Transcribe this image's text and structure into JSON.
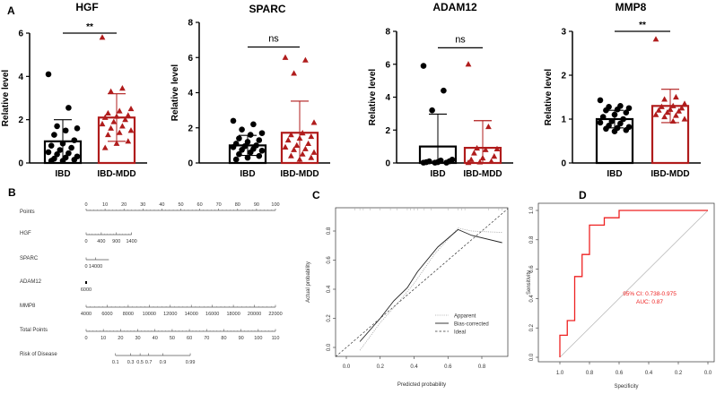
{
  "panel_labels": {
    "a": "A",
    "b": "B",
    "c": "C",
    "d": "D"
  },
  "chart_data": [
    {
      "type": "bar",
      "title": "HGF",
      "ylabel": "Relative level",
      "ylim": [
        0,
        6
      ],
      "yticks": [
        0,
        2,
        4,
        6
      ],
      "categories": [
        "IBD",
        "IBD-MDD"
      ],
      "significance": "**",
      "sig_level": 6.0,
      "groups": [
        {
          "name": "IBD",
          "mean": 1.0,
          "sd": 1.0,
          "points": [
            4.1,
            2.55,
            1.7,
            1.6,
            1.5,
            1.3,
            1.05,
            0.9,
            0.8,
            0.7,
            0.6,
            0.5,
            0.45,
            0.4,
            0.3,
            0.25,
            0.2,
            0.15,
            0.1,
            0.1
          ]
        },
        {
          "name": "IBD-MDD",
          "mean": 2.1,
          "sd": 1.1,
          "points": [
            5.8,
            3.45,
            3.3,
            2.5,
            2.4,
            2.3,
            2.2,
            2.15,
            2.1,
            2.0,
            1.9,
            1.8,
            1.7,
            1.6,
            1.5,
            1.4,
            1.3,
            1.0,
            0.9,
            0.7
          ]
        }
      ]
    },
    {
      "type": "bar",
      "title": "SPARC",
      "ylabel": "Relative level",
      "ylim": [
        0,
        8
      ],
      "yticks": [
        0,
        2,
        4,
        6,
        8
      ],
      "categories": [
        "IBD",
        "IBD-MDD"
      ],
      "significance": "ns",
      "sig_level": 6.6,
      "groups": [
        {
          "name": "IBD",
          "mean": 1.0,
          "sd": 0.57,
          "points": [
            2.4,
            2.2,
            1.9,
            1.7,
            1.6,
            1.4,
            1.3,
            1.2,
            1.1,
            1.0,
            0.95,
            0.9,
            0.8,
            0.75,
            0.7,
            0.6,
            0.5,
            0.4,
            0.3,
            0.2
          ]
        },
        {
          "name": "IBD-MDD",
          "mean": 1.72,
          "sd": 1.8,
          "points": [
            6.0,
            5.85,
            5.1,
            2.3,
            1.7,
            1.6,
            1.5,
            1.4,
            1.3,
            1.1,
            1.0,
            0.9,
            0.8,
            0.75,
            0.6,
            0.5,
            0.4,
            0.3,
            0.2
          ]
        }
      ]
    },
    {
      "type": "bar",
      "title": "ADAM12",
      "ylabel": "Relative level",
      "ylim": [
        0,
        8
      ],
      "yticks": [
        0,
        2,
        4,
        6,
        8
      ],
      "categories": [
        "IBD",
        "IBD-MDD"
      ],
      "significance": "ns",
      "sig_level": 7.0,
      "groups": [
        {
          "name": "IBD",
          "mean": 1.0,
          "sd": 1.97,
          "points": [
            5.9,
            4.4,
            3.2,
            0.2,
            0.15,
            0.1,
            0.1,
            0.05,
            0.05,
            0.02,
            0.02,
            0.02
          ]
        },
        {
          "name": "IBD-MDD",
          "mean": 0.92,
          "sd": 1.65,
          "points": [
            6.0,
            2.2,
            0.9,
            0.85,
            0.8,
            0.6,
            0.4,
            0.3,
            0.2,
            0.1,
            0.05,
            0.02
          ]
        }
      ]
    },
    {
      "type": "bar",
      "title": "MMP8",
      "ylabel": "Relative level",
      "ylim": [
        0,
        3
      ],
      "yticks": [
        0,
        1,
        2,
        3
      ],
      "categories": [
        "IBD",
        "IBD-MDD"
      ],
      "significance": "**",
      "sig_level": 3.0,
      "groups": [
        {
          "name": "IBD",
          "mean": 1.0,
          "sd": 0.2,
          "points": [
            1.43,
            1.3,
            1.28,
            1.25,
            1.22,
            1.2,
            1.15,
            1.1,
            1.05,
            1.0,
            0.95,
            0.92,
            0.9,
            0.85,
            0.82,
            0.8,
            0.78,
            0.75,
            0.72
          ]
        },
        {
          "name": "IBD-MDD",
          "mean": 1.3,
          "sd": 0.38,
          "points": [
            2.82,
            1.5,
            1.45,
            1.35,
            1.3,
            1.28,
            1.25,
            1.22,
            1.2,
            1.18,
            1.15,
            1.1,
            1.08,
            1.05,
            1.0,
            0.95
          ]
        }
      ]
    },
    {
      "type": "nomogram",
      "rows": [
        {
          "label": "Points",
          "ticks": [
            "0",
            "10",
            "20",
            "30",
            "40",
            "50",
            "60",
            "70",
            "80",
            "90",
            "100"
          ],
          "span": [
            0,
            100
          ],
          "labels_above": true
        },
        {
          "label": "HGF",
          "ticks": [
            "0",
            "400",
            "900",
            "1400"
          ],
          "span": [
            0,
            24
          ]
        },
        {
          "label": "SPARC",
          "ticks": [
            "0",
            "14000"
          ],
          "span": [
            0,
            12
          ],
          "tick_pos": [
            0,
            5
          ]
        },
        {
          "label": "ADAM12",
          "ticks": [
            "6000"
          ],
          "span": [
            0,
            0
          ]
        },
        {
          "label": "MMP8",
          "ticks": [
            "4000",
            "6000",
            "8000",
            "10000",
            "12000",
            "14000",
            "16000",
            "18000",
            "20000",
            "22000"
          ],
          "span": [
            0,
            100
          ]
        },
        {
          "label": "Total Points",
          "ticks": [
            "0",
            "10",
            "20",
            "30",
            "40",
            "50",
            "60",
            "70",
            "80",
            "90",
            "100",
            "110"
          ],
          "span": [
            0,
            100
          ]
        },
        {
          "label": "Risk of Disease",
          "ticks": [
            "0.1",
            "0.3",
            "0.5",
            "0.7",
            "0.9",
            "0.99"
          ],
          "span": [
            15.5,
            55
          ],
          "tick_pos": [
            15.5,
            23.5,
            28.5,
            33,
            40.5,
            55
          ]
        }
      ]
    },
    {
      "type": "line",
      "xlabel": "Predicted probability",
      "ylabel": "Actual probability",
      "xticks": [
        "0.0",
        "0.2",
        "0.4",
        "0.6",
        "0.8"
      ],
      "yticks": [
        "0.0",
        "0.2",
        "0.4",
        "0.6",
        "0.8"
      ],
      "series": [
        {
          "name": "Apparent",
          "x": [
            0.08,
            0.2,
            0.3,
            0.4,
            0.52,
            0.66,
            0.74,
            0.92
          ],
          "y": [
            -0.02,
            0.17,
            0.3,
            0.44,
            0.64,
            0.82,
            0.8,
            0.79
          ]
        },
        {
          "name": "Bias-corrected",
          "x": [
            0.08,
            0.2,
            0.28,
            0.36,
            0.42,
            0.54,
            0.66,
            0.74,
            0.92
          ],
          "y": [
            0.04,
            0.2,
            0.32,
            0.41,
            0.52,
            0.69,
            0.81,
            0.77,
            0.72
          ]
        },
        {
          "name": "Ideal",
          "x": [
            -0.05,
            0.95
          ],
          "y": [
            -0.05,
            0.95
          ]
        }
      ],
      "rug": [
        0.05,
        0.08,
        0.1,
        0.14,
        0.2,
        0.26,
        0.3,
        0.36,
        0.38,
        0.4,
        0.42,
        0.46,
        0.5,
        0.6,
        0.66,
        0.68,
        0.7,
        0.84,
        0.9,
        0.92
      ],
      "legend": "bottom-right"
    },
    {
      "type": "line",
      "xlabel": "Specificity",
      "ylabel": "Sensitivity",
      "xticks": [
        "1.0",
        "0.8",
        "0.6",
        "0.4",
        "0.2",
        "0.0"
      ],
      "yticks": [
        "0.0",
        "0.2",
        "0.4",
        "0.6",
        "0.8",
        "1.0"
      ],
      "roc": {
        "specificity": [
          1,
          1,
          0.95,
          0.95,
          0.9,
          0.9,
          0.85,
          0.85,
          0.8,
          0.8,
          0.7,
          0.7,
          0.6,
          0.6,
          0
        ],
        "sensitivity": [
          0,
          0.15,
          0.15,
          0.25,
          0.25,
          0.55,
          0.55,
          0.7,
          0.7,
          0.9,
          0.9,
          0.95,
          0.95,
          1,
          1
        ]
      },
      "ci_text": "95% CI: 0.738-0.975",
      "auc_text": "AUC: 0.87",
      "color": "#ee2222"
    }
  ]
}
